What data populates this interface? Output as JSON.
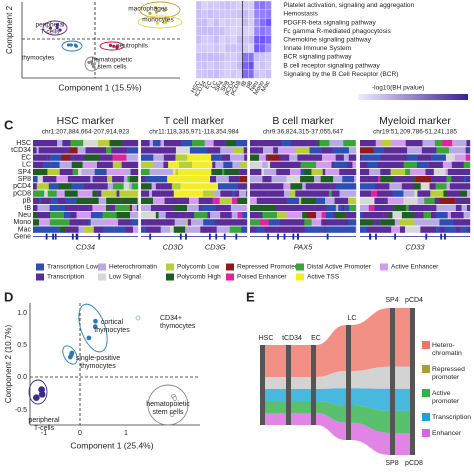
{
  "panel_a": {
    "y_label": "Component 2",
    "x_label": "Component 1 (15.5%)",
    "groups": [
      {
        "lines": [
          "macrophages"
        ],
        "color": "#c9a227"
      },
      {
        "lines": [
          "monocytes"
        ],
        "color": "#e6d23a"
      },
      {
        "lines": [
          "peripheral",
          "T-cells"
        ],
        "color": "#5b2c8f"
      },
      {
        "lines": [
          "neutrophils"
        ],
        "color": "#c0143c"
      },
      {
        "lines": [
          "thymocytes"
        ],
        "color": "#2b7bba"
      },
      {
        "lines": [
          "hematopoietic",
          "stem cells"
        ],
        "color": "#888888"
      }
    ]
  },
  "panel_b": {
    "columns": [
      "HSC",
      "tCD34",
      "EC",
      "LC",
      "SP4",
      "SP8",
      "pCD4",
      "pCD8",
      "tB",
      "pB",
      "Neu",
      "Mono",
      "Mac"
    ],
    "pathways": [
      "Platelet activation, signaling and aggregation",
      "Hemostasis",
      "PDGFR-beta signaling pathway",
      "Fc gamma R-mediated phagocytosis",
      "Chemokine signaling pathway",
      "Innate Immune System",
      "BCR signaling pathway",
      "B cell receptor signaling pathway",
      "Signaling by the B Cell Receptor (BCR)"
    ],
    "legend_title": "-log10(BH pvalue)"
  },
  "panel_c": {
    "label": "C",
    "markers": [
      {
        "title": "HSC marker",
        "locus": "chr1:207,884,664-207,914,923",
        "genes": [
          "CD34"
        ]
      },
      {
        "title": "T cell marker",
        "locus": "chr11:118,335,971-118,354,984",
        "genes": [
          "CD3D",
          "CD3G"
        ]
      },
      {
        "title": "B cell marker",
        "locus": "chr9:36,824,315-37,055,647",
        "genes": [
          "PAX5"
        ]
      },
      {
        "title": "Myeloid marker",
        "locus": "chr19:51,209,786-51,241,185",
        "genes": [
          "CD33"
        ]
      }
    ],
    "rows": [
      "HSC",
      "tCD34",
      "EC",
      "LC",
      "SP4",
      "SP8",
      "pCD4",
      "pCD8",
      "pB",
      "tB",
      "Neu",
      "Mono",
      "Mac",
      "Gene"
    ],
    "legend": [
      {
        "name": "Transcription Low",
        "color": "#2d4fb3"
      },
      {
        "name": "Heterochromatin",
        "color": "#b9a9e6"
      },
      {
        "name": "Polycomb Low",
        "color": "#b8cf3a"
      },
      {
        "name": "Repressed Promoter",
        "color": "#8e1b1b"
      },
      {
        "name": "Distal Active Promoter",
        "color": "#3aa33a"
      },
      {
        "name": "Active Enhancer",
        "color": "#d39cf0"
      },
      {
        "name": "Transcription",
        "color": "#5b2c97"
      },
      {
        "name": "Low Signal",
        "color": "#d8d8d8"
      },
      {
        "name": "Polycomb High",
        "color": "#1f5e22"
      },
      {
        "name": "Poised Enhancer",
        "color": "#e0249e"
      },
      {
        "name": "Active TSS",
        "color": "#f2ee2a"
      }
    ]
  },
  "panel_d": {
    "label": "D",
    "y_label": "Component 2 (10.7%)",
    "x_label": "Component 1 (25.4%)",
    "yticks": [
      "1.0",
      "0.5",
      "0.0",
      "-0.5"
    ],
    "xticks": [
      "-1",
      "0",
      "1"
    ],
    "groups": [
      {
        "lines": [
          "cortical",
          "thymocytes"
        ],
        "color": "#2b7bba"
      },
      {
        "lines": [
          "CD34+",
          "thymocytes"
        ],
        "color": "#7fb8e0"
      },
      {
        "lines": [
          "single-positive",
          "thymocytes"
        ],
        "color": "#2b7bba"
      },
      {
        "lines": [
          "hematopoietic",
          "stem cells"
        ],
        "color": "#888888"
      },
      {
        "lines": [
          "peripheral",
          "T-cells"
        ],
        "color": "#3d2a8f"
      }
    ]
  },
  "panel_e": {
    "label": "E",
    "stages": [
      "HSC",
      "tCD34",
      "EC",
      "LC",
      "SP4",
      "pCD4",
      "SP8",
      "pCD8"
    ],
    "legend": [
      {
        "lines": [
          "Hetero-",
          "chromatin"
        ],
        "color": "#f07468"
      },
      {
        "lines": [
          "Repressed",
          "promoter"
        ],
        "color": "#a8a030"
      },
      {
        "lines": [
          "Active",
          "promoter"
        ],
        "color": "#2fb24a"
      },
      {
        "lines": [
          "Transcription"
        ],
        "color": "#1aa6d6"
      },
      {
        "lines": [
          "Enhancer"
        ],
        "color": "#d866e0"
      }
    ]
  }
}
